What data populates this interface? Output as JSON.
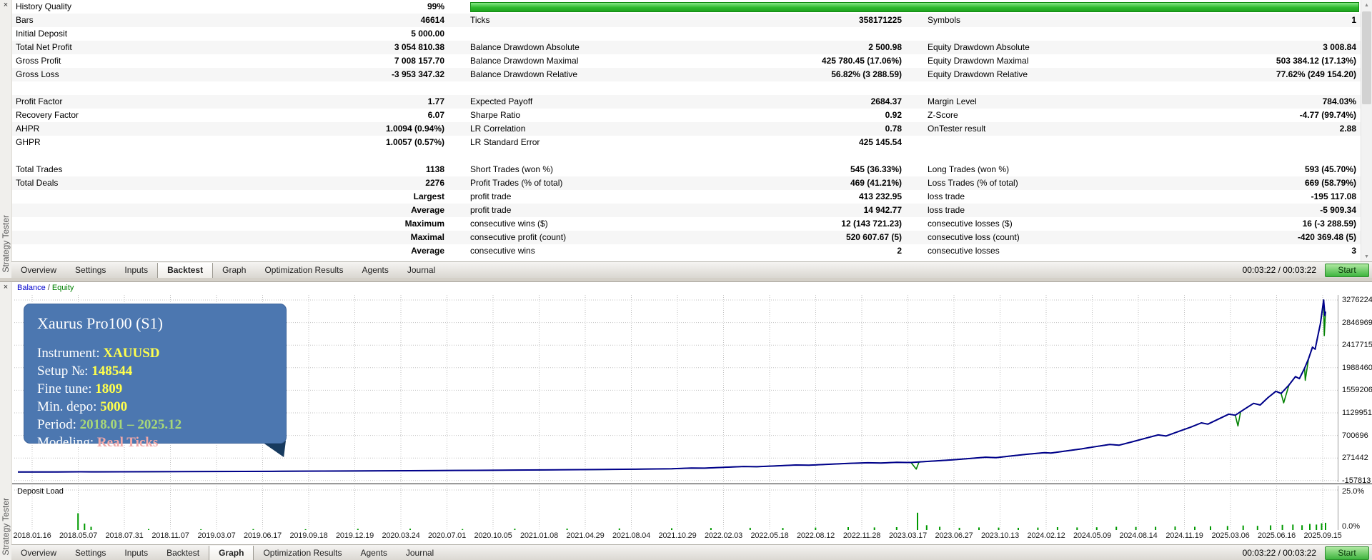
{
  "strategy_tester": {
    "label": "Strategy Tester",
    "close": "×"
  },
  "icons": {
    "scroll_up": "▲",
    "scroll_down": "▼"
  },
  "report": {
    "rows": [
      {
        "l1": "History Quality",
        "v1": "99%",
        "bar": true
      },
      {
        "l1": "Bars",
        "v1": "46614",
        "l2": "Ticks",
        "v2": "358171225",
        "l3": "Symbols",
        "v3": "1"
      },
      {
        "l1": "Initial Deposit",
        "v1": "5 000.00"
      },
      {
        "l1": "Total Net Profit",
        "v1": "3 054 810.38",
        "l2": "Balance Drawdown Absolute",
        "v2": "2 500.98",
        "l3": "Equity Drawdown Absolute",
        "v3": "3 008.84"
      },
      {
        "l1": "Gross Profit",
        "v1": "7 008 157.70",
        "l2": "Balance Drawdown Maximal",
        "v2": "425 780.45 (17.06%)",
        "l3": "Equity Drawdown Maximal",
        "v3": "503 384.12 (17.13%)"
      },
      {
        "l1": "Gross Loss",
        "v1": "-3 953 347.32",
        "l2": "Balance Drawdown Relative",
        "v2": "56.82% (3 288.59)",
        "l3": "Equity Drawdown Relative",
        "v3": "77.62% (249 154.20)"
      },
      {
        "spacer": true
      },
      {
        "l1": "Profit Factor",
        "v1": "1.77",
        "l2": "Expected Payoff",
        "v2": "2684.37",
        "l3": "Margin Level",
        "v3": "784.03%"
      },
      {
        "l1": "Recovery Factor",
        "v1": "6.07",
        "l2": "Sharpe Ratio",
        "v2": "0.92",
        "l3": "Z-Score",
        "v3": "-4.77 (99.74%)"
      },
      {
        "l1": "AHPR",
        "v1": "1.0094 (0.94%)",
        "l2": "LR Correlation",
        "v2": "0.78",
        "l3": "OnTester result",
        "v3": "2.88"
      },
      {
        "l1": "GHPR",
        "v1": "1.0057 (0.57%)",
        "l2": "LR Standard Error",
        "v2": "425 145.54"
      },
      {
        "spacer": true
      },
      {
        "l1": "Total Trades",
        "v1": "1138",
        "l2": "Short Trades (won %)",
        "v2": "545 (36.33%)",
        "l3": "Long Trades (won %)",
        "v3": "593 (45.70%)"
      },
      {
        "l1": "Total Deals",
        "v1": "2276",
        "l2": "Profit Trades (% of total)",
        "v2": "469 (41.21%)",
        "l3": "Loss Trades (% of total)",
        "v3": "669 (58.79%)"
      },
      {
        "v1": "Largest",
        "l2": "profit trade",
        "v2": "413 232.95",
        "l3": "loss trade",
        "v3": "-195 117.08"
      },
      {
        "v1": "Average",
        "l2": "profit trade",
        "v2": "14 942.77",
        "l3": "loss trade",
        "v3": "-5 909.34"
      },
      {
        "v1": "Maximum",
        "l2": "consecutive wins ($)",
        "v2": "12 (143 721.23)",
        "l3": "consecutive losses ($)",
        "v3": "16 (-3 288.59)"
      },
      {
        "v1": "Maximal",
        "l2": "consecutive profit (count)",
        "v2": "520 607.67 (5)",
        "l3": "consecutive loss (count)",
        "v3": "-420 369.48 (5)"
      },
      {
        "v1": "Average",
        "l2": "consecutive wins",
        "v2": "2",
        "l3": "consecutive losses",
        "v3": "3"
      }
    ]
  },
  "tabs": {
    "items": [
      "Overview",
      "Settings",
      "Inputs",
      "Backtest",
      "Graph",
      "Optimization Results",
      "Agents",
      "Journal"
    ],
    "active_top": "Backtest",
    "active_bottom": "Graph",
    "time": "00:03:22 / 00:03:22",
    "start": "Start"
  },
  "graph": {
    "legend": {
      "balance": "Balance",
      "sep": "/",
      "equity": "Equity"
    },
    "infobox": {
      "title": "Xaurus Pro100 (S1)",
      "bg_color": "#4c77b0",
      "lines": [
        {
          "label": "Instrument: ",
          "value": "XAUUSD",
          "color": "#ffff4d"
        },
        {
          "label": "Setup №: ",
          "value": "148544",
          "color": "#ffff4d"
        },
        {
          "label": "Fine tune: ",
          "value": "1809",
          "color": "#ffff4d"
        },
        {
          "label": "Min. depo: ",
          "value": "5000",
          "color": "#ffff4d"
        },
        {
          "label": "Period: ",
          "value": "2018.01 – 2025.12",
          "color": "#a8d878"
        },
        {
          "label": "Modeling: ",
          "value": "Real Ticks",
          "color": "#f0a8a8"
        }
      ]
    },
    "deposit_load": {
      "label": "Deposit Load",
      "max_label": "25.0%",
      "min_label": "0.0%"
    }
  },
  "chart_data": {
    "type": "line",
    "title": "Balance / Equity backtest curve",
    "ylabel": "Balance",
    "grid": true,
    "y_ticks": [
      3276224,
      2846969,
      2417715,
      1988460,
      1559206,
      1129951,
      700696,
      271442,
      -157813
    ],
    "x_ticks": [
      "2018.01.16",
      "2018.05.07",
      "2018.07.31",
      "2018.11.07",
      "2019.03.07",
      "2019.06.17",
      "2019.09.18",
      "2019.12.19",
      "2020.03.24",
      "2020.07.01",
      "2020.10.05",
      "2021.01.08",
      "2021.04.29",
      "2021.08.04",
      "2021.10.29",
      "2022.02.03",
      "2022.05.18",
      "2022.08.12",
      "2022.11.28",
      "2023.03.17",
      "2023.06.27",
      "2023.10.13",
      "2024.02.12",
      "2024.05.09",
      "2024.08.14",
      "2024.11.19",
      "2025.03.06",
      "2025.06.16",
      "2025.09.15"
    ],
    "series": [
      {
        "name": "Balance",
        "color": "#00008b",
        "points": [
          [
            0,
            5000
          ],
          [
            0.03,
            6000
          ],
          [
            0.048,
            9000
          ],
          [
            0.06,
            8500
          ],
          [
            0.1,
            11000
          ],
          [
            0.15,
            15000
          ],
          [
            0.2,
            19000
          ],
          [
            0.25,
            24000
          ],
          [
            0.3,
            30000
          ],
          [
            0.35,
            37000
          ],
          [
            0.4,
            45000
          ],
          [
            0.44,
            52000
          ],
          [
            0.47,
            58000
          ],
          [
            0.5,
            66000
          ],
          [
            0.515,
            80000
          ],
          [
            0.525,
            78000
          ],
          [
            0.54,
            95000
          ],
          [
            0.555,
            110000
          ],
          [
            0.565,
            106000
          ],
          [
            0.58,
            122000
          ],
          [
            0.595,
            138000
          ],
          [
            0.605,
            134000
          ],
          [
            0.62,
            152000
          ],
          [
            0.635,
            168000
          ],
          [
            0.65,
            180000
          ],
          [
            0.66,
            176000
          ],
          [
            0.672,
            190000
          ],
          [
            0.683,
            186000
          ],
          [
            0.69,
            198000
          ],
          [
            0.702,
            216000
          ],
          [
            0.715,
            238000
          ],
          [
            0.728,
            262000
          ],
          [
            0.74,
            286000
          ],
          [
            0.748,
            278000
          ],
          [
            0.76,
            312000
          ],
          [
            0.772,
            344000
          ],
          [
            0.785,
            372000
          ],
          [
            0.79,
            365000
          ],
          [
            0.8,
            400000
          ],
          [
            0.812,
            440000
          ],
          [
            0.824,
            488000
          ],
          [
            0.835,
            530000
          ],
          [
            0.842,
            515000
          ],
          [
            0.853,
            585000
          ],
          [
            0.862,
            645000
          ],
          [
            0.872,
            710000
          ],
          [
            0.878,
            690000
          ],
          [
            0.888,
            780000
          ],
          [
            0.897,
            860000
          ],
          [
            0.905,
            940000
          ],
          [
            0.91,
            915000
          ],
          [
            0.918,
            1010000
          ],
          [
            0.926,
            1105000
          ],
          [
            0.931,
            1085000
          ],
          [
            0.938,
            1200000
          ],
          [
            0.945,
            1310000
          ],
          [
            0.95,
            1280000
          ],
          [
            0.956,
            1420000
          ],
          [
            0.962,
            1540000
          ],
          [
            0.966,
            1500000
          ],
          [
            0.972,
            1660000
          ],
          [
            0.977,
            1820000
          ],
          [
            0.98,
            1780000
          ],
          [
            0.984,
            1980000
          ],
          [
            0.987,
            2160000
          ],
          [
            0.99,
            2380000
          ],
          [
            0.992,
            2340000
          ],
          [
            0.994,
            2580000
          ],
          [
            0.996,
            2820000
          ],
          [
            0.9975,
            3080000
          ],
          [
            0.9985,
            3276224
          ],
          [
            0.9995,
            2980000
          ],
          [
            1,
            3054810
          ]
        ]
      },
      {
        "name": "Equity",
        "color": "#008000",
        "points": [
          [
            0,
            5000
          ],
          [
            0.03,
            6000
          ],
          [
            0.048,
            9000
          ],
          [
            0.06,
            8500
          ],
          [
            0.1,
            11000
          ],
          [
            0.15,
            15000
          ],
          [
            0.2,
            19000
          ],
          [
            0.25,
            24000
          ],
          [
            0.3,
            30000
          ],
          [
            0.35,
            37000
          ],
          [
            0.4,
            45000
          ],
          [
            0.44,
            52000
          ],
          [
            0.47,
            58000
          ],
          [
            0.5,
            66000
          ],
          [
            0.515,
            80000
          ],
          [
            0.525,
            78000
          ],
          [
            0.54,
            95000
          ],
          [
            0.555,
            110000
          ],
          [
            0.565,
            106000
          ],
          [
            0.58,
            122000
          ],
          [
            0.595,
            138000
          ],
          [
            0.605,
            134000
          ],
          [
            0.62,
            152000
          ],
          [
            0.635,
            168000
          ],
          [
            0.65,
            180000
          ],
          [
            0.66,
            176000
          ],
          [
            0.672,
            190000
          ],
          [
            0.683,
            186000
          ],
          [
            0.687,
            60000
          ],
          [
            0.689,
            190000
          ],
          [
            0.69,
            198000
          ],
          [
            0.702,
            216000
          ],
          [
            0.715,
            238000
          ],
          [
            0.728,
            262000
          ],
          [
            0.74,
            286000
          ],
          [
            0.748,
            278000
          ],
          [
            0.76,
            312000
          ],
          [
            0.772,
            344000
          ],
          [
            0.785,
            372000
          ],
          [
            0.79,
            365000
          ],
          [
            0.8,
            400000
          ],
          [
            0.812,
            440000
          ],
          [
            0.824,
            488000
          ],
          [
            0.835,
            530000
          ],
          [
            0.842,
            515000
          ],
          [
            0.853,
            585000
          ],
          [
            0.862,
            645000
          ],
          [
            0.872,
            710000
          ],
          [
            0.878,
            690000
          ],
          [
            0.888,
            780000
          ],
          [
            0.897,
            860000
          ],
          [
            0.905,
            940000
          ],
          [
            0.91,
            915000
          ],
          [
            0.918,
            1010000
          ],
          [
            0.926,
            1105000
          ],
          [
            0.931,
            1085000
          ],
          [
            0.933,
            880000
          ],
          [
            0.935,
            1150000
          ],
          [
            0.938,
            1200000
          ],
          [
            0.945,
            1310000
          ],
          [
            0.95,
            1280000
          ],
          [
            0.956,
            1420000
          ],
          [
            0.962,
            1540000
          ],
          [
            0.966,
            1500000
          ],
          [
            0.968,
            1320000
          ],
          [
            0.972,
            1660000
          ],
          [
            0.977,
            1820000
          ],
          [
            0.98,
            1780000
          ],
          [
            0.984,
            1980000
          ],
          [
            0.9845,
            1750000
          ],
          [
            0.987,
            2160000
          ],
          [
            0.99,
            2380000
          ],
          [
            0.992,
            2340000
          ],
          [
            0.994,
            2580000
          ],
          [
            0.996,
            2820000
          ],
          [
            0.9975,
            3080000
          ],
          [
            0.9985,
            3276224
          ],
          [
            0.999,
            2600000
          ],
          [
            1,
            3054810
          ]
        ]
      }
    ],
    "deposit_load_series": {
      "unit": "%",
      "max": 25,
      "points": [
        [
          0.046,
          10.5
        ],
        [
          0.051,
          4
        ],
        [
          0.056,
          2
        ],
        [
          0.1,
          0.6
        ],
        [
          0.14,
          0.5
        ],
        [
          0.18,
          0.6
        ],
        [
          0.22,
          0.5
        ],
        [
          0.26,
          0.7
        ],
        [
          0.3,
          0.8
        ],
        [
          0.34,
          0.6
        ],
        [
          0.38,
          0.8
        ],
        [
          0.42,
          0.9
        ],
        [
          0.46,
          1
        ],
        [
          0.5,
          1.1
        ],
        [
          0.53,
          1.3
        ],
        [
          0.56,
          1.4
        ],
        [
          0.585,
          1.3
        ],
        [
          0.61,
          1.5
        ],
        [
          0.635,
          1.8
        ],
        [
          0.655,
          1.6
        ],
        [
          0.672,
          1.8
        ],
        [
          0.688,
          10.8
        ],
        [
          0.695,
          3
        ],
        [
          0.705,
          2
        ],
        [
          0.72,
          1.4
        ],
        [
          0.735,
          1.6
        ],
        [
          0.75,
          1.5
        ],
        [
          0.765,
          1.4
        ],
        [
          0.78,
          1.5
        ],
        [
          0.795,
          1.8
        ],
        [
          0.81,
          1.6
        ],
        [
          0.825,
          1.7
        ],
        [
          0.84,
          2
        ],
        [
          0.855,
          1.9
        ],
        [
          0.87,
          2
        ],
        [
          0.885,
          2.2
        ],
        [
          0.9,
          2
        ],
        [
          0.912,
          2.3
        ],
        [
          0.925,
          2.5
        ],
        [
          0.937,
          2.8
        ],
        [
          0.948,
          2.6
        ],
        [
          0.958,
          2.9
        ],
        [
          0.967,
          3.2
        ],
        [
          0.975,
          3.4
        ],
        [
          0.982,
          3
        ],
        [
          0.988,
          3.8
        ],
        [
          0.993,
          3.4
        ],
        [
          0.997,
          4.2
        ],
        [
          1,
          4.5
        ]
      ]
    }
  }
}
